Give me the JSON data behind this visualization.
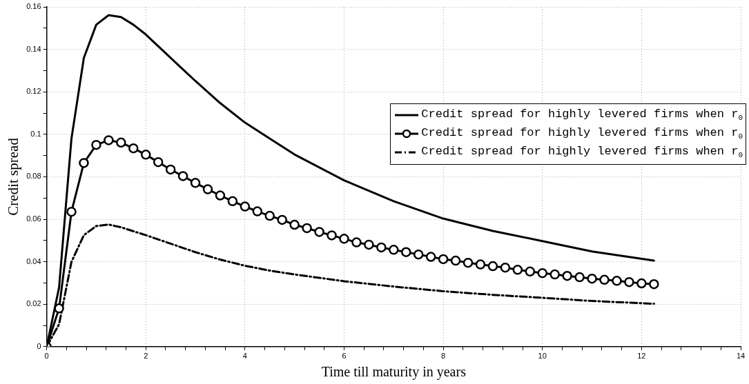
{
  "chart_data": {
    "type": "line",
    "xlabel": "Time till maturity in years",
    "ylabel": "Credit spread",
    "x": [
      0,
      0.25,
      0.5,
      0.75,
      1,
      1.25,
      1.5,
      1.75,
      2,
      2.25,
      2.5,
      2.75,
      3,
      3.25,
      3.5,
      3.75,
      4,
      4.25,
      4.5,
      4.75,
      5,
      5.25,
      5.5,
      5.75,
      6,
      6.25,
      6.5,
      6.75,
      7,
      7.25,
      7.5,
      7.75,
      8,
      8.25,
      8.5,
      8.75,
      9,
      9.25,
      9.5,
      9.75,
      10,
      10.25,
      10.5,
      10.75,
      11,
      11.25,
      11.5,
      11.75,
      12,
      12.25
    ],
    "series": [
      {
        "name": "Credit spread for highly levered firms when r$_{0}$",
        "color": "#000000",
        "marker": "none",
        "line_style": "solid",
        "x": [
          0,
          0.25,
          0.5,
          0.75,
          1,
          1.25,
          1.5,
          1.75,
          2,
          2.5,
          3,
          3.5,
          4,
          4.5,
          5,
          6,
          7,
          8,
          9,
          10,
          11,
          12.25
        ],
        "values": [
          0,
          0.0278,
          0.098,
          0.136,
          0.1516,
          0.1561,
          0.1552,
          0.1516,
          0.147,
          0.136,
          0.1251,
          0.1147,
          0.1055,
          0.098,
          0.0905,
          0.0783,
          0.0685,
          0.0603,
          0.0545,
          0.0497,
          0.0448,
          0.0405
        ]
      },
      {
        "name": "Credit spread for highly levered firms when r$_{0}$",
        "color": "#000000",
        "marker": "circle",
        "line_style": "solid",
        "values": [
          0,
          0.018,
          0.0635,
          0.0865,
          0.095,
          0.0972,
          0.0961,
          0.0934,
          0.0904,
          0.0869,
          0.0834,
          0.0803,
          0.0771,
          0.0741,
          0.0712,
          0.0685,
          0.066,
          0.0637,
          0.0616,
          0.0597,
          0.0574,
          0.0558,
          0.054,
          0.0524,
          0.0508,
          0.0491,
          0.048,
          0.0467,
          0.0456,
          0.0445,
          0.0434,
          0.0423,
          0.0412,
          0.0405,
          0.0395,
          0.0387,
          0.0379,
          0.0372,
          0.0362,
          0.0354,
          0.0346,
          0.034,
          0.0333,
          0.0327,
          0.032,
          0.0315,
          0.031,
          0.0304,
          0.0298,
          0.0294
        ]
      },
      {
        "name": "Credit spread for highly levered firms when r$_{0}$",
        "color": "#000000",
        "marker": "none",
        "line_style": "dashdot",
        "x": [
          0,
          0.25,
          0.5,
          0.75,
          1,
          1.25,
          1.5,
          2,
          2.5,
          3,
          3.5,
          4,
          4.5,
          5,
          6,
          7,
          8,
          9,
          10,
          11,
          12.25
        ],
        "values": [
          0,
          0.0105,
          0.0399,
          0.0525,
          0.0568,
          0.0575,
          0.0562,
          0.0525,
          0.0485,
          0.0445,
          0.041,
          0.0381,
          0.0358,
          0.034,
          0.0308,
          0.0283,
          0.0261,
          0.0244,
          0.023,
          0.0215,
          0.0202
        ]
      }
    ],
    "xlim": [
      0,
      14
    ],
    "xticks": [
      0,
      {
        "value": 0.4,
        "label": null
      },
      {
        "value": 0.8,
        "label": null
      },
      {
        "value": 1.2,
        "label": null
      },
      {
        "value": 1.6,
        "label": null
      },
      2,
      {
        "value": 2.4,
        "label": null
      },
      {
        "value": 2.8,
        "label": null
      },
      {
        "value": 3.2,
        "label": null
      },
      {
        "value": 3.6,
        "label": null
      },
      4,
      {
        "value": 4.4,
        "label": null
      },
      {
        "value": 4.8,
        "label": null
      },
      {
        "value": 5.2,
        "label": null
      },
      {
        "value": 5.6,
        "label": null
      },
      6,
      {
        "value": 6.4,
        "label": null
      },
      {
        "value": 6.8,
        "label": null
      },
      {
        "value": 7.2,
        "label": null
      },
      {
        "value": 7.6,
        "label": null
      },
      8,
      {
        "value": 8.4,
        "label": null
      },
      {
        "value": 8.8,
        "label": null
      },
      {
        "value": 9.2,
        "label": null
      },
      {
        "value": 9.6,
        "label": null
      },
      10,
      {
        "value": 10.4,
        "label": null
      },
      {
        "value": 10.8,
        "label": null
      },
      {
        "value": 11.2,
        "label": null
      },
      {
        "value": 11.6,
        "label": null
      },
      12,
      {
        "value": 12.4,
        "label": null
      },
      {
        "value": 12.8,
        "label": null
      },
      {
        "value": 13.2,
        "label": null
      },
      {
        "value": 13.6,
        "label": null
      },
      14
    ],
    "ylim": [
      0,
      0.16
    ],
    "yticks": [
      0,
      {
        "value": 0.01,
        "label": null
      },
      0.02,
      {
        "value": 0.03,
        "label": null
      },
      0.04,
      {
        "value": 0.05,
        "label": null
      },
      0.06,
      {
        "value": 0.07,
        "label": null
      },
      0.08,
      {
        "value": 0.09,
        "label": null
      },
      0.1,
      {
        "value": 0.11,
        "label": null
      },
      0.12,
      {
        "value": 0.13,
        "label": null
      },
      0.14,
      {
        "value": 0.15,
        "label": null
      },
      0.16
    ],
    "grid": true,
    "legend": "top right"
  }
}
